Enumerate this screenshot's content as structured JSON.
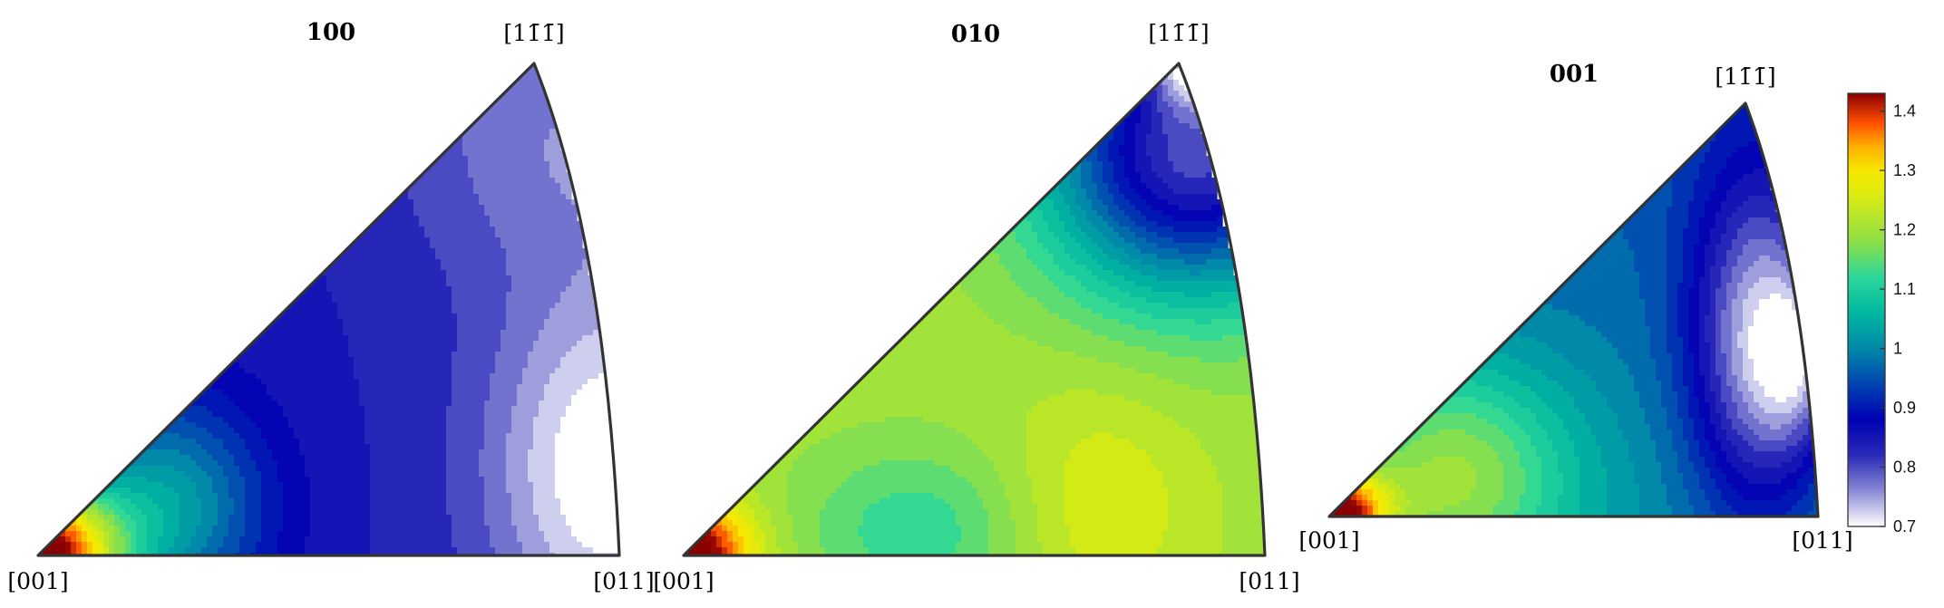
{
  "chart_data": {
    "type": "heatmap",
    "subtype": "inverse-pole-figure",
    "panels": [
      {
        "title": "100",
        "corners": {
          "origin": "[001]",
          "right": "[011]",
          "apex": "[1̄̄]"
        },
        "apex_label_parts": [
          "[1",
          "1̄",
          "1̄",
          "]"
        ]
      },
      {
        "title": "010",
        "corners": {
          "origin": "[001]",
          "right": "[011]",
          "apex": "[1̄̄]"
        },
        "apex_label_parts": [
          "[1",
          "1̄",
          "1̄",
          "]"
        ]
      },
      {
        "title": "001",
        "corners": {
          "origin": "[001]",
          "right": "[011]",
          "apex": "[1̄̄]"
        },
        "apex_label_parts": [
          "[1",
          "1̄",
          "1̄",
          "]"
        ]
      }
    ],
    "colorbar": {
      "min": 0.7,
      "max": 1.43,
      "ticks": [
        0.7,
        0.8,
        0.9,
        1,
        1.1,
        1.2,
        1.3,
        1.4
      ],
      "tick_labels": [
        "0.7",
        "0.8",
        "0.9",
        "1",
        "1.1",
        "1.2",
        "1.3",
        "1.4"
      ],
      "colormap_stops": [
        [
          0.7,
          "#ffffff"
        ],
        [
          0.76,
          "#8a8ad6"
        ],
        [
          0.82,
          "#2a2ab8"
        ],
        [
          0.88,
          "#0000b4"
        ],
        [
          0.94,
          "#0044b0"
        ],
        [
          1.0,
          "#0089a8"
        ],
        [
          1.06,
          "#00b7a0"
        ],
        [
          1.12,
          "#2bd79a"
        ],
        [
          1.18,
          "#8de048"
        ],
        [
          1.26,
          "#ddeb10"
        ],
        [
          1.3,
          "#f7e800"
        ],
        [
          1.34,
          "#ffb000"
        ],
        [
          1.38,
          "#ff5000"
        ],
        [
          1.43,
          "#8b0000"
        ]
      ],
      "placement": "right"
    }
  }
}
